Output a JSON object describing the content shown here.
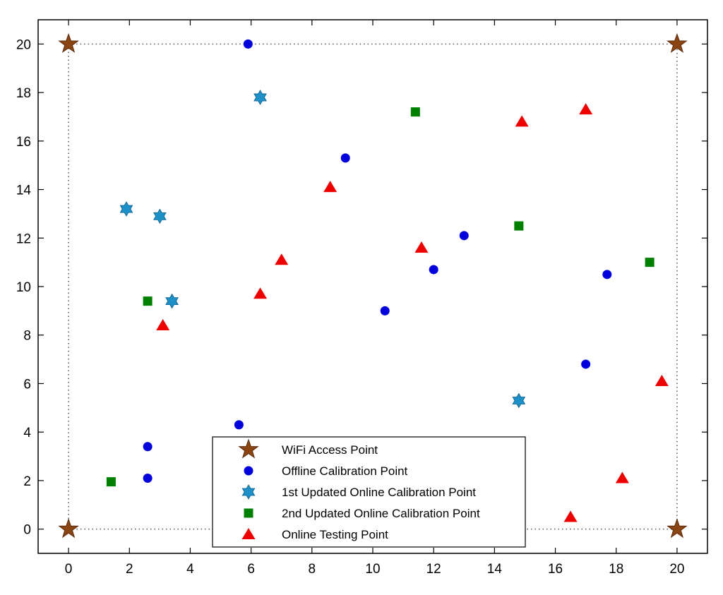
{
  "chart_data": {
    "type": "scatter",
    "title": "",
    "xlabel": "",
    "ylabel": "",
    "xlim": [
      -1,
      21
    ],
    "ylim": [
      -1,
      21
    ],
    "xticks": [
      0,
      2,
      4,
      6,
      8,
      10,
      12,
      14,
      16,
      18,
      20
    ],
    "yticks": [
      0,
      2,
      4,
      6,
      8,
      10,
      12,
      14,
      16,
      18,
      20
    ],
    "grid": false,
    "legend_position": "bottom-center",
    "boundary": {
      "style": "dotted",
      "x": [
        0,
        20
      ],
      "y": [
        0,
        20
      ]
    },
    "series": [
      {
        "name": "WiFi Access Point",
        "marker": "star",
        "color": "#8B4513",
        "points": [
          [
            0,
            20
          ],
          [
            20,
            20
          ],
          [
            0,
            0
          ],
          [
            20,
            0
          ]
        ]
      },
      {
        "name": "Offline Calibration Point",
        "marker": "circle",
        "color": "#0000DD",
        "points": [
          [
            5.9,
            20
          ],
          [
            9.1,
            15.3
          ],
          [
            13.0,
            12.1
          ],
          [
            12.0,
            10.7
          ],
          [
            17.7,
            10.5
          ],
          [
            10.4,
            9.0
          ],
          [
            17.0,
            6.8
          ],
          [
            5.6,
            4.3
          ],
          [
            2.6,
            3.4
          ],
          [
            2.6,
            2.1
          ]
        ]
      },
      {
        "name": "1st Updated Online Calibration Point",
        "marker": "hexagram",
        "color": "#1E90C8",
        "points": [
          [
            6.3,
            17.8
          ],
          [
            1.9,
            13.2
          ],
          [
            3.0,
            12.9
          ],
          [
            3.4,
            9.4
          ],
          [
            14.8,
            5.3
          ]
        ]
      },
      {
        "name": "2nd Updated Online Calibration Point",
        "marker": "square",
        "color": "#008000",
        "points": [
          [
            11.4,
            17.2
          ],
          [
            14.8,
            12.5
          ],
          [
            19.1,
            11.0
          ],
          [
            2.6,
            9.4
          ],
          [
            1.4,
            1.95
          ]
        ]
      },
      {
        "name": "Online Testing Point",
        "marker": "triangle",
        "color": "#EE0000",
        "points": [
          [
            17.0,
            17.3
          ],
          [
            14.9,
            16.8
          ],
          [
            8.6,
            14.1
          ],
          [
            11.6,
            11.6
          ],
          [
            7.0,
            11.1
          ],
          [
            6.3,
            9.7
          ],
          [
            3.1,
            8.4
          ],
          [
            19.5,
            6.1
          ],
          [
            18.2,
            2.1
          ],
          [
            16.5,
            0.5
          ]
        ]
      }
    ]
  }
}
